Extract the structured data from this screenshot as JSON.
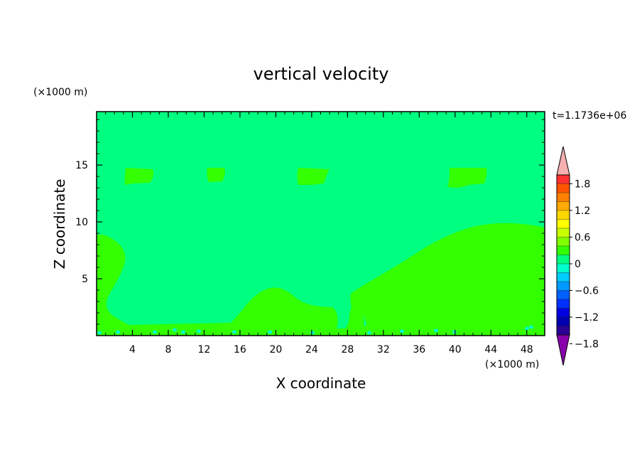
{
  "chart_data": {
    "type": "contour",
    "title": "vertical velocity",
    "xlabel": "X coordinate",
    "ylabel": "Z coordinate",
    "x_unit": "(×1000 m)",
    "y_unit": "(×1000 m)",
    "time_label": "t=1.1736e+06",
    "xlim": [
      0,
      50
    ],
    "ylim": [
      0,
      19.7
    ],
    "x_ticks": [
      4,
      8,
      12,
      16,
      20,
      24,
      28,
      32,
      36,
      40,
      44,
      48
    ],
    "y_ticks": [
      5,
      10,
      15
    ],
    "background_level_color": "#00ff80",
    "grid": false,
    "colorbar": {
      "labels": [
        "1.8",
        "1.2",
        "0.6",
        "0",
        "−0.6",
        "−1.2",
        "−1.8"
      ],
      "label_values": [
        1.8,
        1.2,
        0.6,
        0,
        -0.6,
        -1.2,
        -1.8
      ],
      "colors": [
        "#ff3030",
        "#ff5500",
        "#ff8000",
        "#ffaa00",
        "#ffd700",
        "#ffff00",
        "#c8ff00",
        "#80ff00",
        "#33ff00",
        "#00ff80",
        "#00ffcc",
        "#00ccff",
        "#0099ff",
        "#0060ff",
        "#0030ff",
        "#0000e0",
        "#0000b0",
        "#2a0095"
      ],
      "over_color": "#f5b0b0",
      "under_color": "#8800aa"
    },
    "regions": [
      {
        "level_color": "#33ff00",
        "shape": "left lower lobe",
        "x_range": [
          0,
          3
        ],
        "z_range": [
          0,
          9.2
        ]
      },
      {
        "level_color": "#33ff00",
        "shape": "bottom band and central hill",
        "x_range": [
          0,
          50
        ],
        "z_range": [
          0,
          4.4
        ]
      },
      {
        "level_color": "#33ff00",
        "shape": "right dome",
        "x_range": [
          28.5,
          50
        ],
        "z_range": [
          0,
          10
        ]
      },
      {
        "level_color": "#33ff00",
        "shape": "upper patch",
        "x_range": [
          3,
          6.3
        ],
        "z_range": [
          13.3,
          14.9
        ]
      },
      {
        "level_color": "#33ff00",
        "shape": "upper patch",
        "x_range": [
          12.3,
          14.3
        ],
        "z_range": [
          13.7,
          14.9
        ]
      },
      {
        "level_color": "#33ff00",
        "shape": "upper patch",
        "x_range": [
          22.5,
          25.5
        ],
        "z_range": [
          13.3,
          14.9
        ]
      },
      {
        "level_color": "#33ff00",
        "shape": "upper patch",
        "x_range": [
          39,
          43.6
        ],
        "z_range": [
          13.1,
          14.9
        ]
      }
    ]
  }
}
